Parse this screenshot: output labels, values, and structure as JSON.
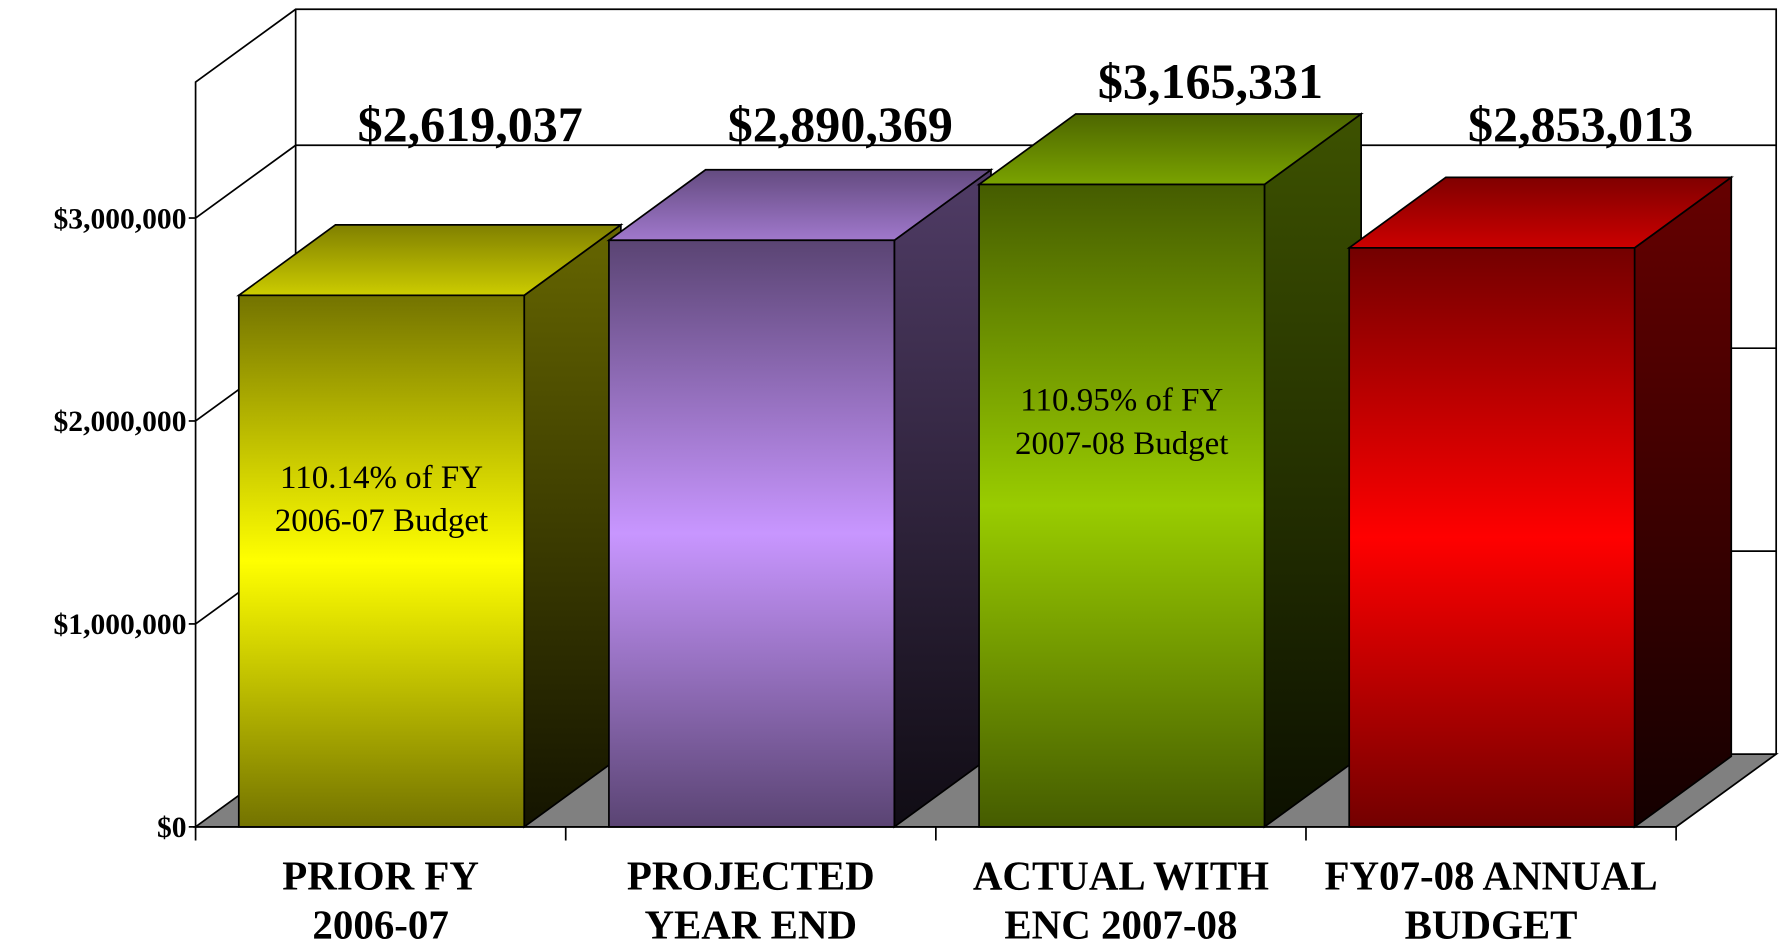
{
  "chart_data": {
    "type": "bar3d",
    "categories": [
      "PRIOR FY\n2006-07",
      "PROJECTED\nYEAR END",
      "ACTUAL WITH\nENC 2007-08",
      "FY07-08 ANNUAL\nBUDGET"
    ],
    "values": [
      2619037,
      2890369,
      3165331,
      2853013
    ],
    "value_labels": [
      "$2,619,037",
      "$2,890,369",
      "$3,165,331",
      "$2,853,013"
    ],
    "colors": [
      "#ffff00",
      "#c896ff",
      "#99cc00",
      "#ff0000"
    ],
    "annotations": [
      {
        "text": "110.14% of FY\n2006-07 Budget",
        "category": "PRIOR FY\n2006-07"
      },
      {
        "text": "110.95% of FY\n2007-08 Budget",
        "category": "ACTUAL WITH\nENC 2007-08"
      }
    ],
    "ylim": [
      0,
      3670000
    ],
    "yticks": [
      {
        "value": 0,
        "label": "$0"
      },
      {
        "value": 1000000,
        "label": "$1,000,000"
      },
      {
        "value": 2000000,
        "label": "$2,000,000"
      },
      {
        "value": 3000000,
        "label": "$3,000,000"
      }
    ],
    "grid": true
  }
}
